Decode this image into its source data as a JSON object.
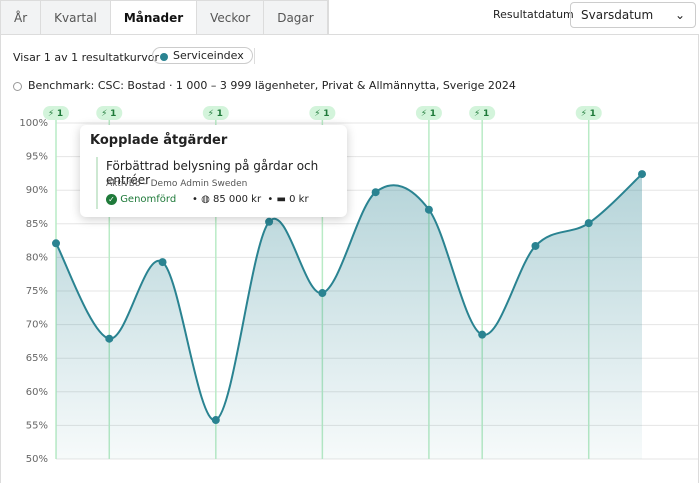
{
  "tabs": [
    "År",
    "Kvartal",
    "Månader",
    "Veckor",
    "Dagar"
  ],
  "result_date": {
    "label": "Resultatdatum",
    "value": "Svarsdatum"
  },
  "status": {
    "text": "Visar 1 av 1 resultatkurvor",
    "chip": "Serviceindex"
  },
  "benchmark": "Benchmark: CSC: Bostad · 1 000 – 3 999 lägenheter, Privat & Allmännytta, Sverige 2024",
  "tooltip": {
    "title": "Kopplade åtgärder",
    "item": "Förbättrad belysning på gårdar och entréer",
    "org": "AktivBo – Demo Admin Sweden",
    "state": "Genomförd",
    "cost": "85 000 kr",
    "other_cost": "0 kr"
  },
  "chart_data": {
    "type": "line",
    "categories": [
      null,
      null,
      null,
      null,
      null,
      null,
      null,
      null,
      null,
      null,
      null,
      null
    ],
    "series": [
      {
        "name": "Serviceindex",
        "color": "#2a8391",
        "values": [
          82.1,
          67.9,
          79.3,
          55.8,
          85.3,
          74.7,
          89.7,
          87.1,
          68.5,
          81.7,
          85.1,
          92.4
        ]
      }
    ],
    "action_counts": [
      1,
      1,
      null,
      1,
      null,
      1,
      null,
      1,
      1,
      null,
      1,
      null
    ],
    "ylim": [
      50,
      100
    ],
    "yticks": [
      {
        "value": 50,
        "label": "50%"
      },
      {
        "value": 55,
        "label": "55%"
      },
      {
        "value": 60,
        "label": "60%"
      },
      {
        "value": 65,
        "label": "65%"
      },
      {
        "value": 70,
        "label": "70%"
      },
      {
        "value": 75,
        "label": "75%"
      },
      {
        "value": 80,
        "label": "80%"
      },
      {
        "value": 85,
        "label": "85%"
      },
      {
        "value": 90,
        "label": "90%"
      },
      {
        "value": 95,
        "label": "95%"
      },
      {
        "value": 100,
        "label": "100%"
      }
    ],
    "grid": true
  }
}
